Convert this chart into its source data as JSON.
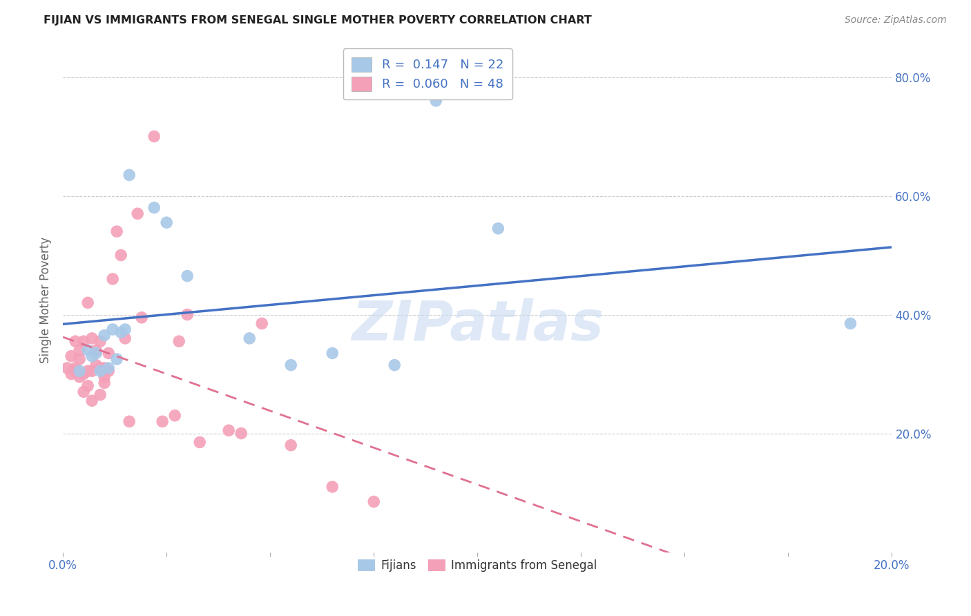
{
  "title": "FIJIAN VS IMMIGRANTS FROM SENEGAL SINGLE MOTHER POVERTY CORRELATION CHART",
  "source": "Source: ZipAtlas.com",
  "ylabel": "Single Mother Poverty",
  "xlim": [
    0.0,
    0.2
  ],
  "ylim": [
    0.0,
    0.85
  ],
  "xticks": [
    0.0,
    0.025,
    0.05,
    0.075,
    0.1,
    0.125,
    0.15,
    0.175,
    0.2
  ],
  "xtick_labels": [
    "0.0%",
    "",
    "",
    "",
    "",
    "",
    "",
    "",
    "20.0%"
  ],
  "yticks": [
    0.0,
    0.2,
    0.4,
    0.6,
    0.8
  ],
  "ytick_labels": [
    "",
    "20.0%",
    "40.0%",
    "60.0%",
    "80.0%"
  ],
  "fijian_R": 0.147,
  "fijian_N": 22,
  "senegal_R": 0.06,
  "senegal_N": 48,
  "fijian_color": "#a8c8e8",
  "senegal_color": "#f4a0b8",
  "fijian_line_color": "#4472c4",
  "senegal_line_color": "#e07090",
  "legend_text_color": "#4472c4",
  "watermark": "ZIPatlas",
  "watermark_color": "#c8daf0",
  "fijian_x": [
    0.004,
    0.006,
    0.007,
    0.008,
    0.009,
    0.01,
    0.011,
    0.012,
    0.013,
    0.014,
    0.015,
    0.016,
    0.022,
    0.025,
    0.03,
    0.045,
    0.055,
    0.065,
    0.08,
    0.09,
    0.105,
    0.19
  ],
  "fijian_y": [
    0.305,
    0.34,
    0.33,
    0.335,
    0.305,
    0.365,
    0.31,
    0.375,
    0.325,
    0.37,
    0.375,
    0.635,
    0.58,
    0.555,
    0.465,
    0.36,
    0.315,
    0.335,
    0.315,
    0.76,
    0.545,
    0.385
  ],
  "senegal_x": [
    0.001,
    0.002,
    0.002,
    0.003,
    0.003,
    0.003,
    0.004,
    0.004,
    0.004,
    0.005,
    0.005,
    0.005,
    0.006,
    0.006,
    0.006,
    0.007,
    0.007,
    0.007,
    0.008,
    0.008,
    0.009,
    0.009,
    0.009,
    0.01,
    0.01,
    0.01,
    0.01,
    0.011,
    0.011,
    0.012,
    0.013,
    0.014,
    0.015,
    0.016,
    0.018,
    0.019,
    0.022,
    0.024,
    0.027,
    0.028,
    0.03,
    0.033,
    0.04,
    0.043,
    0.048,
    0.055,
    0.065,
    0.075
  ],
  "senegal_y": [
    0.31,
    0.3,
    0.33,
    0.355,
    0.305,
    0.31,
    0.295,
    0.325,
    0.34,
    0.3,
    0.27,
    0.355,
    0.28,
    0.305,
    0.42,
    0.255,
    0.305,
    0.36,
    0.34,
    0.315,
    0.265,
    0.31,
    0.355,
    0.285,
    0.31,
    0.295,
    0.305,
    0.305,
    0.335,
    0.46,
    0.54,
    0.5,
    0.36,
    0.22,
    0.57,
    0.395,
    0.7,
    0.22,
    0.23,
    0.355,
    0.4,
    0.185,
    0.205,
    0.2,
    0.385,
    0.18,
    0.11,
    0.085
  ]
}
